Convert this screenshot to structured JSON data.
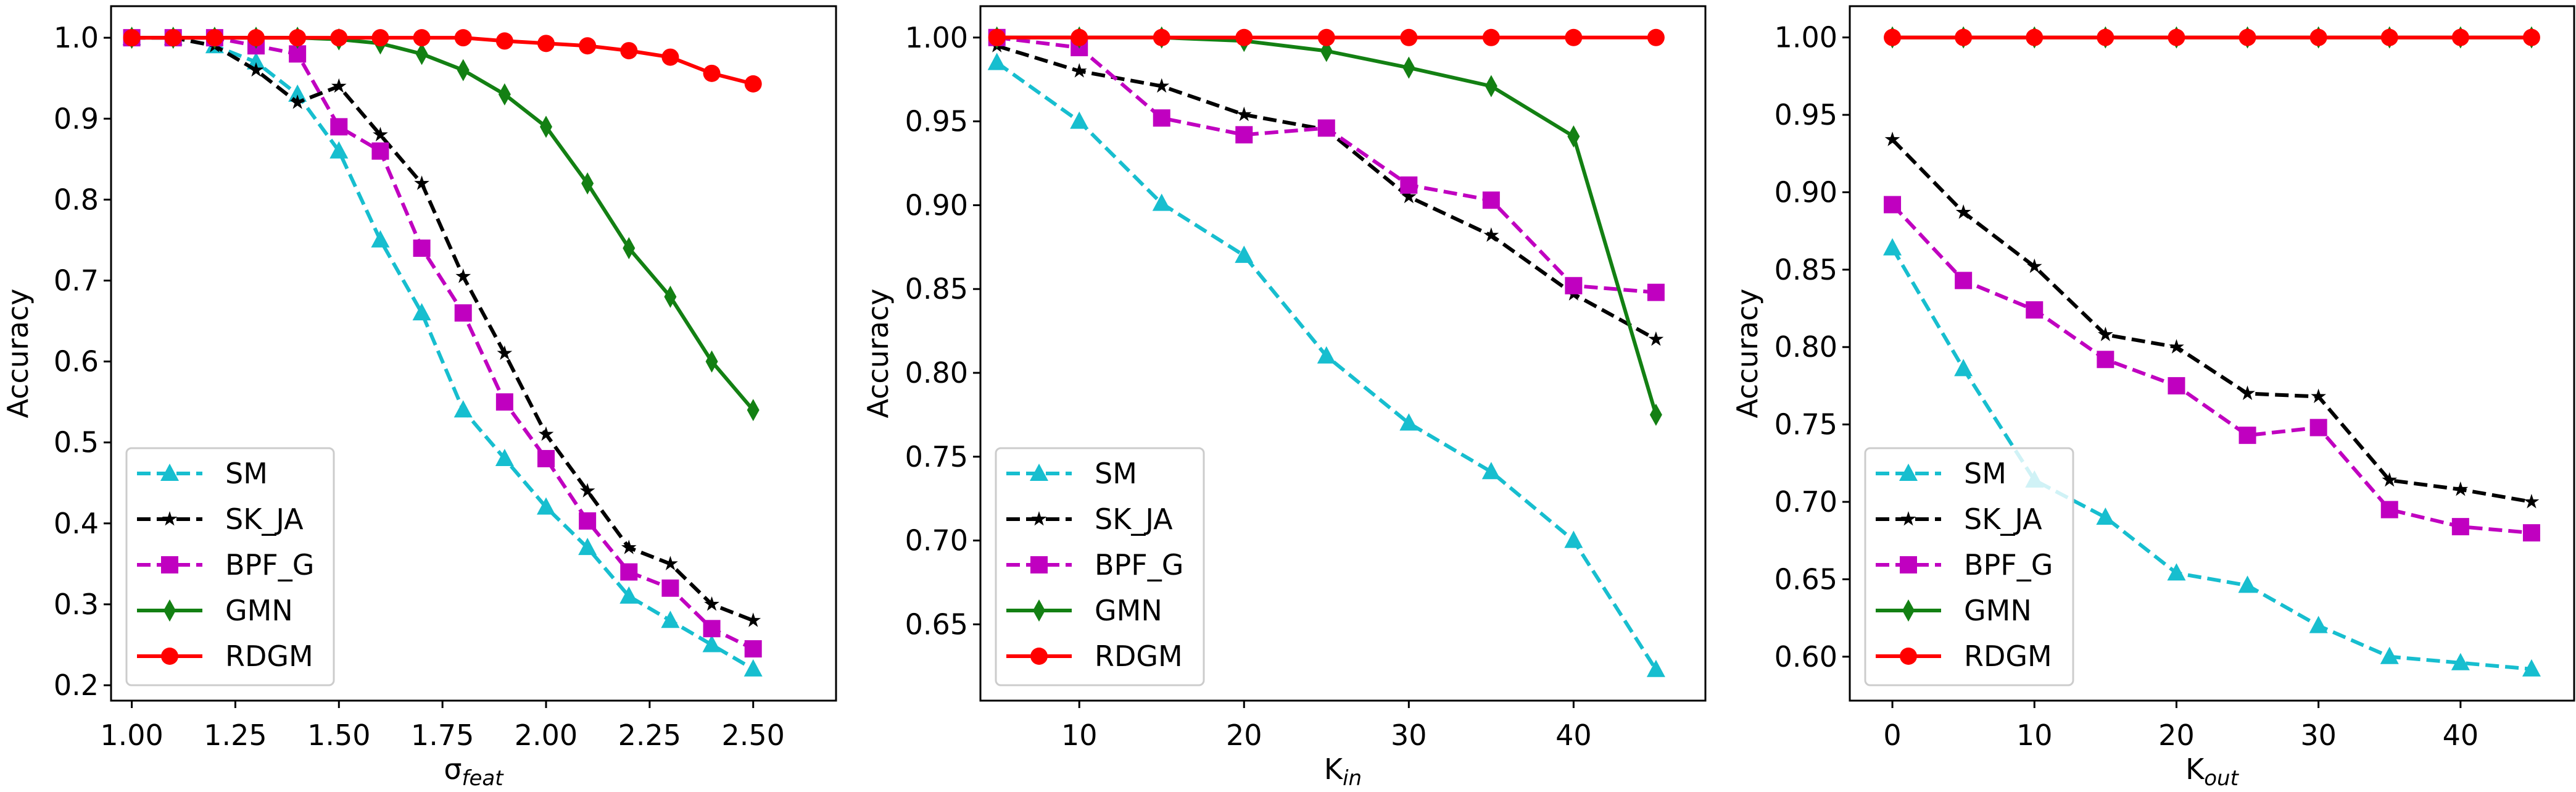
{
  "colors": {
    "SM": "#17becf",
    "SK_JA": "#000000",
    "BPF_G": "#c000c0",
    "GMN": "#138013",
    "RDGM": "#ff0000"
  },
  "chart_data": [
    {
      "type": "line",
      "xlabel": "σ",
      "xlabel_sub": "feat",
      "ylabel": "Accuracy",
      "xlim": [
        0.95,
        2.7
      ],
      "ylim": [
        0.181,
        1.039
      ],
      "grid": false,
      "legend": "lower-left",
      "xticks": [
        1.0,
        1.25,
        1.5,
        1.75,
        2.0,
        2.25,
        2.5
      ],
      "xtick_labels": [
        "1.00",
        "1.25",
        "1.50",
        "1.75",
        "2.00",
        "2.25",
        "2.50"
      ],
      "yticks": [
        0.2,
        0.3,
        0.4,
        0.5,
        0.6,
        0.7,
        0.8,
        0.9,
        1.0
      ],
      "ytick_labels": [
        "0.2",
        "0.3",
        "0.4",
        "0.5",
        "0.6",
        "0.7",
        "0.8",
        "0.9",
        "1.0"
      ],
      "x": [
        1.0,
        1.1,
        1.2,
        1.3,
        1.4,
        1.5,
        1.6,
        1.7,
        1.8,
        1.9,
        2.0,
        2.1,
        2.2,
        2.3,
        2.4,
        2.5
      ],
      "series": [
        {
          "name": "SM",
          "style": "dashed",
          "marker": "triangle",
          "values": [
            1.0,
            1.0,
            0.99,
            0.97,
            0.93,
            0.86,
            0.75,
            0.66,
            0.54,
            0.48,
            0.42,
            0.37,
            0.31,
            0.28,
            0.25,
            0.22
          ]
        },
        {
          "name": "SK_JA",
          "style": "dashed",
          "marker": "star",
          "values": [
            1.0,
            1.0,
            0.99,
            0.96,
            0.92,
            0.94,
            0.88,
            0.82,
            0.705,
            0.61,
            0.51,
            0.44,
            0.37,
            0.35,
            0.3,
            0.28
          ]
        },
        {
          "name": "BPF_G",
          "style": "dashed",
          "marker": "square",
          "values": [
            1.0,
            1.0,
            1.0,
            0.99,
            0.98,
            0.89,
            0.86,
            0.74,
            0.66,
            0.55,
            0.48,
            0.403,
            0.34,
            0.32,
            0.27,
            0.245
          ]
        },
        {
          "name": "GMN",
          "style": "solid",
          "marker": "diamond",
          "values": [
            1.0,
            1.0,
            1.0,
            1.0,
            1.0,
            0.998,
            0.993,
            0.98,
            0.96,
            0.93,
            0.89,
            0.82,
            0.74,
            0.68,
            0.6,
            0.54
          ]
        },
        {
          "name": "RDGM",
          "style": "solid",
          "marker": "circle",
          "values": [
            1.0,
            1.0,
            1.0,
            1.0,
            1.0,
            1.0,
            1.0,
            1.0,
            1.0,
            0.996,
            0.993,
            0.99,
            0.984,
            0.976,
            0.956,
            0.943
          ]
        }
      ]
    },
    {
      "type": "line",
      "xlabel": "K",
      "xlabel_sub": "in",
      "ylabel": "Accuracy",
      "xlim": [
        4.0,
        48.0
      ],
      "ylim": [
        0.6045,
        1.0187
      ],
      "grid": false,
      "legend": "lower-left",
      "xticks": [
        10,
        20,
        30,
        40
      ],
      "xtick_labels": [
        "10",
        "20",
        "30",
        "40"
      ],
      "yticks": [
        0.65,
        0.7,
        0.75,
        0.8,
        0.85,
        0.9,
        0.95,
        1.0
      ],
      "ytick_labels": [
        "0.65",
        "0.70",
        "0.75",
        "0.80",
        "0.85",
        "0.90",
        "0.95",
        "1.00"
      ],
      "x": [
        5,
        10,
        15,
        20,
        25,
        30,
        35,
        40,
        45
      ],
      "series": [
        {
          "name": "SM",
          "style": "dashed",
          "marker": "triangle",
          "values": [
            0.985,
            0.95,
            0.901,
            0.87,
            0.81,
            0.77,
            0.741,
            0.7,
            0.623
          ]
        },
        {
          "name": "SK_JA",
          "style": "dashed",
          "marker": "star",
          "values": [
            0.995,
            0.98,
            0.971,
            0.954,
            0.945,
            0.905,
            0.882,
            0.847,
            0.82
          ]
        },
        {
          "name": "BPF_G",
          "style": "dashed",
          "marker": "square",
          "values": [
            1.0,
            0.994,
            0.952,
            0.942,
            0.946,
            0.912,
            0.903,
            0.852,
            0.848
          ]
        },
        {
          "name": "GMN",
          "style": "solid",
          "marker": "diamond",
          "values": [
            1.0,
            1.0,
            1.0,
            0.998,
            0.992,
            0.982,
            0.971,
            0.941,
            0.775
          ]
        },
        {
          "name": "RDGM",
          "style": "solid",
          "marker": "circle",
          "values": [
            1.0,
            1.0,
            1.0,
            1.0,
            1.0,
            1.0,
            1.0,
            1.0,
            1.0
          ]
        }
      ]
    },
    {
      "type": "line",
      "xlabel": "K",
      "xlabel_sub": "out",
      "ylabel": "Accuracy",
      "xlim": [
        -3.0,
        48.0
      ],
      "ylim": [
        0.5716,
        1.0202
      ],
      "grid": false,
      "legend": "lower-left",
      "xticks": [
        0,
        10,
        20,
        30,
        40
      ],
      "xtick_labels": [
        "0",
        "10",
        "20",
        "30",
        "40"
      ],
      "yticks": [
        0.6,
        0.65,
        0.7,
        0.75,
        0.8,
        0.85,
        0.9,
        0.95,
        1.0
      ],
      "ytick_labels": [
        "0.60",
        "0.65",
        "0.70",
        "0.75",
        "0.80",
        "0.85",
        "0.90",
        "0.95",
        "1.00"
      ],
      "x": [
        0,
        5,
        10,
        15,
        20,
        25,
        30,
        35,
        40,
        45
      ],
      "series": [
        {
          "name": "SM",
          "style": "dashed",
          "marker": "triangle",
          "values": [
            0.864,
            0.786,
            0.714,
            0.69,
            0.654,
            0.646,
            0.62,
            0.6,
            0.596,
            0.592
          ]
        },
        {
          "name": "SK_JA",
          "style": "dashed",
          "marker": "star",
          "values": [
            0.934,
            0.887,
            0.852,
            0.808,
            0.8,
            0.77,
            0.768,
            0.714,
            0.708,
            0.7
          ]
        },
        {
          "name": "BPF_G",
          "style": "dashed",
          "marker": "square",
          "values": [
            0.892,
            0.843,
            0.824,
            0.792,
            0.775,
            0.743,
            0.748,
            0.695,
            0.684,
            0.68
          ]
        },
        {
          "name": "GMN",
          "style": "solid",
          "marker": "diamond",
          "values": [
            1.0,
            1.0,
            1.0,
            1.0,
            1.0,
            1.0,
            1.0,
            1.0,
            1.0,
            1.0
          ]
        },
        {
          "name": "RDGM",
          "style": "solid",
          "marker": "circle",
          "values": [
            1.0,
            1.0,
            1.0,
            1.0,
            1.0,
            1.0,
            1.0,
            1.0,
            1.0,
            1.0
          ]
        }
      ]
    }
  ]
}
